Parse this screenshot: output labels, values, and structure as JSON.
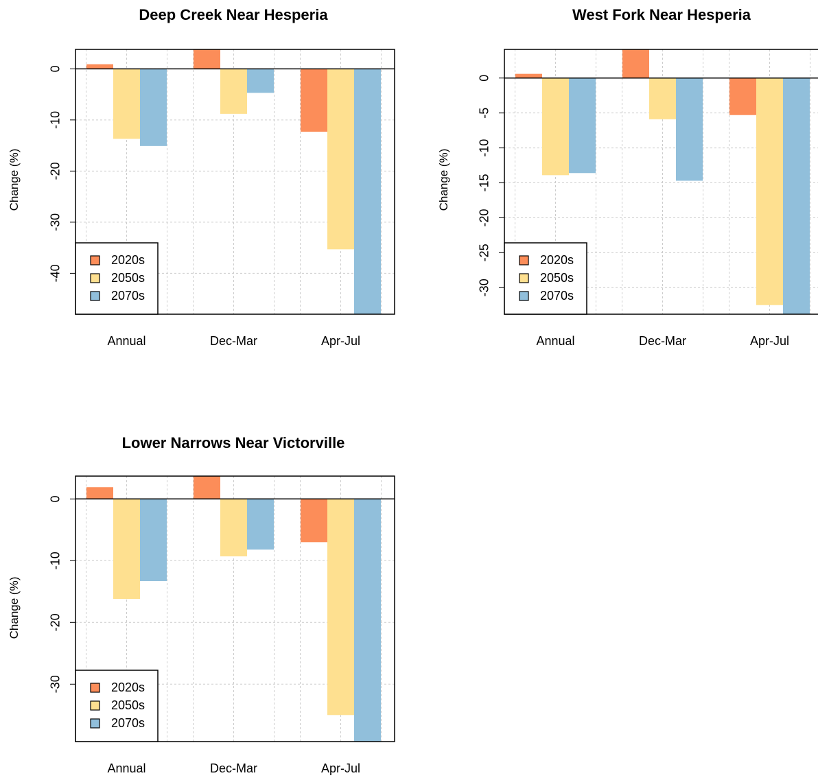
{
  "colors": {
    "2020s": "#FC8D59",
    "2050s": "#FEE090",
    "2070s": "#91BFDB",
    "grid": "#cccccc",
    "axis": "#000000"
  },
  "chart_data": [
    {
      "type": "bar",
      "title": "Deep Creek Near Hesperia",
      "ylabel": "Change (%)",
      "categories": [
        "Annual",
        "Dec-Mar",
        "Apr-Jul"
      ],
      "yticks": [
        0,
        -10,
        -20,
        -30,
        -40
      ],
      "ylim": [
        -48,
        3.8
      ],
      "legend": {
        "position": "bottom-left",
        "entries": [
          "2020s",
          "2050s",
          "2070s"
        ]
      },
      "grid": true,
      "series": [
        {
          "name": "2020s",
          "values": [
            0.9,
            3.8,
            -12.3
          ]
        },
        {
          "name": "2050s",
          "values": [
            -13.7,
            -8.8,
            -35.3
          ]
        },
        {
          "name": "2070s",
          "values": [
            -15.1,
            -4.7,
            -48
          ]
        }
      ]
    },
    {
      "type": "bar",
      "title": "West Fork Near Hesperia",
      "ylabel": "Change (%)",
      "categories": [
        "Annual",
        "Dec-Mar",
        "Apr-Jul"
      ],
      "yticks": [
        0,
        -5,
        -10,
        -15,
        -20,
        -25,
        -30
      ],
      "ylim": [
        -33.8,
        4.1
      ],
      "legend": {
        "position": "bottom-left",
        "entries": [
          "2020s",
          "2050s",
          "2070s"
        ]
      },
      "grid": true,
      "series": [
        {
          "name": "2020s",
          "values": [
            0.6,
            4.1,
            -5.3
          ]
        },
        {
          "name": "2050s",
          "values": [
            -13.9,
            -5.9,
            -32.5
          ]
        },
        {
          "name": "2070s",
          "values": [
            -13.6,
            -14.7,
            -33.8
          ]
        }
      ]
    },
    {
      "type": "bar",
      "title": "Lower Narrows Near Victorville",
      "ylabel": "Change (%)",
      "categories": [
        "Annual",
        "Dec-Mar",
        "Apr-Jul"
      ],
      "yticks": [
        0,
        -10,
        -20,
        -30
      ],
      "ylim": [
        -39.3,
        3.7
      ],
      "legend": {
        "position": "bottom-left",
        "entries": [
          "2020s",
          "2050s",
          "2070s"
        ]
      },
      "grid": true,
      "series": [
        {
          "name": "2020s",
          "values": [
            1.9,
            3.7,
            -7.0
          ]
        },
        {
          "name": "2050s",
          "values": [
            -16.2,
            -9.3,
            -35.0
          ]
        },
        {
          "name": "2070s",
          "values": [
            -13.3,
            -8.2,
            -39.3
          ]
        }
      ]
    }
  ]
}
